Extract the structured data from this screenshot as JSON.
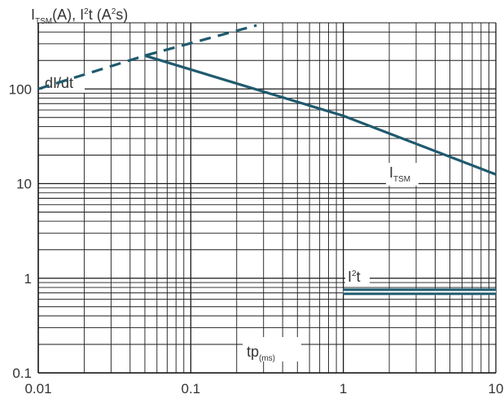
{
  "chart_data": {
    "type": "line",
    "y_axis_title": {
      "part1_main": "I",
      "part1_sub": "TSM",
      "part1_unit": "(A), ",
      "part2_main": "I",
      "part2_sup": "2",
      "part2_unit": "t (A",
      "part2_unit_sup": "2",
      "part2_unit_end": "s)"
    },
    "x_axis_title": {
      "main": "tp",
      "sub": "(ms)"
    },
    "x_scale": "log",
    "y_scale": "log",
    "xlim": [
      0.01,
      10
    ],
    "ylim": [
      0.1,
      500
    ],
    "x_ticks": [
      {
        "value": 0.01,
        "label": "0.01"
      },
      {
        "value": 0.1,
        "label": "0.1"
      },
      {
        "value": 1,
        "label": "1"
      },
      {
        "value": 10,
        "label": "10"
      }
    ],
    "y_ticks": [
      {
        "value": 0.1,
        "label": "0.1"
      },
      {
        "value": 1,
        "label": "1"
      },
      {
        "value": 10,
        "label": "10"
      },
      {
        "value": 100,
        "label": "100"
      }
    ],
    "grid": true,
    "series": [
      {
        "name": "dI/dt",
        "style": "dashed",
        "color": "#1f5a6e",
        "points": [
          [
            0.01,
            100
          ],
          [
            0.05,
            225
          ],
          [
            0.27,
            470
          ]
        ]
      },
      {
        "name_main": "I",
        "name_sub": "TSM",
        "style": "solid",
        "color": "#1f5a6e",
        "points": [
          [
            0.05,
            225
          ],
          [
            1,
            52
          ],
          [
            10,
            12.5
          ]
        ]
      },
      {
        "name_main": "I",
        "name_sup": "2",
        "name_end": "t",
        "style": "double",
        "color": "#1f5a6e",
        "points": [
          [
            1,
            0.72
          ],
          [
            10,
            0.72
          ]
        ]
      }
    ]
  }
}
